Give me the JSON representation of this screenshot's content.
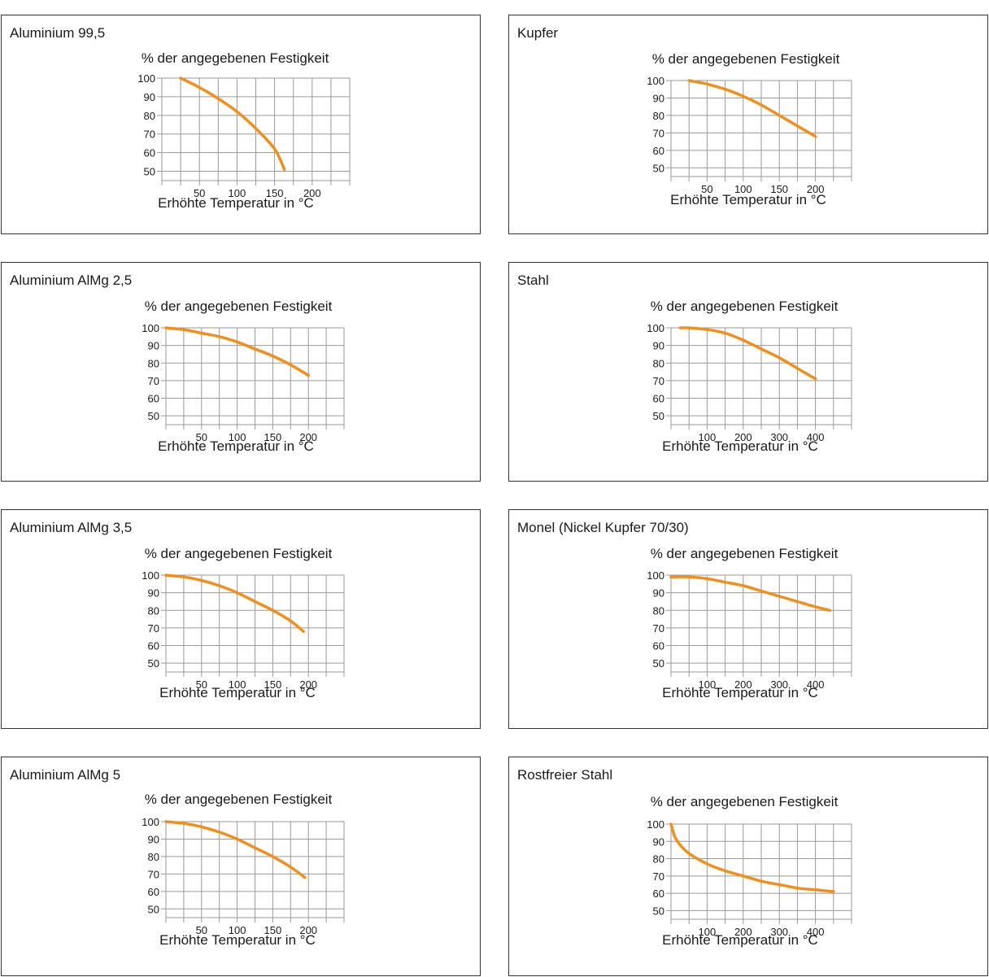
{
  "styles": {
    "curve_color": "#f28f1c",
    "grid_color": "#9a9a9a",
    "border_color": "#333333"
  },
  "chart_data": [
    {
      "id": "alu995",
      "type": "line",
      "panel_title": "Aluminium 99,5",
      "title": "% der angegebenen Festigkeit",
      "xlabel": "Erhöhte Temperatur in °C",
      "xlim": [
        0,
        250
      ],
      "ylim": [
        45,
        100
      ],
      "xticks": [
        50,
        100,
        150,
        200
      ],
      "yticks": [
        100,
        90,
        80,
        70,
        60,
        50
      ],
      "series": [
        {
          "x": [
            25,
            50,
            75,
            100,
            125,
            150,
            163
          ],
          "y": [
            100,
            95,
            89,
            82,
            73,
            62,
            51
          ]
        }
      ]
    },
    {
      "id": "kupfer",
      "type": "line",
      "panel_title": "Kupfer",
      "title": "% der angegebenen Festigkeit",
      "xlabel": "Erhöhte Temperatur in °C",
      "xlim": [
        0,
        250
      ],
      "ylim": [
        45,
        100
      ],
      "xticks": [
        50,
        100,
        150,
        200
      ],
      "yticks": [
        100,
        90,
        80,
        70,
        60,
        50
      ],
      "series": [
        {
          "x": [
            25,
            50,
            75,
            100,
            125,
            150,
            175,
            200
          ],
          "y": [
            100,
            98,
            95,
            91,
            86,
            80,
            74,
            68
          ]
        }
      ]
    },
    {
      "id": "almg25",
      "type": "line",
      "panel_title": "Aluminium AlMg 2,5",
      "title": "% der angegebenen Festigkeit",
      "xlabel": "Erhöhte Temperatur in °C",
      "xlim": [
        0,
        250
      ],
      "ylim": [
        45,
        100
      ],
      "xticks": [
        50,
        100,
        150,
        200
      ],
      "yticks": [
        100,
        90,
        80,
        70,
        60,
        50
      ],
      "series": [
        {
          "x": [
            0,
            25,
            50,
            75,
            100,
            125,
            150,
            175,
            200
          ],
          "y": [
            100,
            99,
            97,
            95,
            92,
            88,
            84,
            79,
            73
          ]
        }
      ]
    },
    {
      "id": "stahl",
      "type": "line",
      "panel_title": "Stahl",
      "title": "% der angegebenen Festigkeit",
      "xlabel": "Erhöhte Temperatur in °C",
      "xlim": [
        0,
        500
      ],
      "ylim": [
        45,
        100
      ],
      "xticks": [
        100,
        200,
        300,
        400
      ],
      "yticks": [
        100,
        90,
        80,
        70,
        60,
        50
      ],
      "series": [
        {
          "x": [
            25,
            50,
            100,
            150,
            200,
            250,
            300,
            350,
            400
          ],
          "y": [
            100,
            100,
            99,
            97,
            93,
            88,
            83,
            77,
            71
          ]
        }
      ]
    },
    {
      "id": "almg35",
      "type": "line",
      "panel_title": "Aluminium AlMg 3,5",
      "title": "% der angegebenen Festigkeit",
      "xlabel": "Erhöhte Temperatur in °C",
      "xlim": [
        0,
        250
      ],
      "ylim": [
        45,
        100
      ],
      "xticks": [
        50,
        100,
        150,
        200
      ],
      "yticks": [
        100,
        90,
        80,
        70,
        60,
        50
      ],
      "series": [
        {
          "x": [
            0,
            25,
            50,
            75,
            100,
            125,
            150,
            175,
            193
          ],
          "y": [
            100,
            99,
            97,
            94,
            90,
            85,
            80,
            74,
            68
          ]
        }
      ]
    },
    {
      "id": "monel",
      "type": "line",
      "panel_title": "Monel (Nickel Kupfer 70/30)",
      "title": "% der angegebenen Festigkeit",
      "xlabel": "Erhöhte Temperatur in °C",
      "xlim": [
        0,
        500
      ],
      "ylim": [
        45,
        100
      ],
      "xticks": [
        100,
        200,
        300,
        400
      ],
      "yticks": [
        100,
        90,
        80,
        70,
        60,
        50
      ],
      "series": [
        {
          "x": [
            0,
            50,
            100,
            150,
            200,
            250,
            300,
            350,
            400,
            440
          ],
          "y": [
            99,
            99,
            98,
            96,
            94,
            91,
            88,
            85,
            82,
            80
          ]
        }
      ]
    },
    {
      "id": "almg5",
      "type": "line",
      "panel_title": "Aluminium AlMg 5",
      "title": "% der angegebenen Festigkeit",
      "xlabel": "Erhöhte Temperatur in °C",
      "xlim": [
        0,
        250
      ],
      "ylim": [
        45,
        100
      ],
      "xticks": [
        50,
        100,
        150,
        200
      ],
      "yticks": [
        100,
        90,
        80,
        70,
        60,
        50
      ],
      "series": [
        {
          "x": [
            0,
            25,
            50,
            75,
            100,
            125,
            150,
            175,
            195
          ],
          "y": [
            100,
            99,
            97,
            94,
            90,
            85,
            80,
            74,
            68
          ]
        }
      ]
    },
    {
      "id": "rostfrei",
      "type": "line",
      "panel_title": "Rostfreier Stahl",
      "title": "% der angegebenen Festigkeit",
      "xlabel": "Erhöhte Temperatur in °C",
      "xlim": [
        0,
        500
      ],
      "ylim": [
        45,
        100
      ],
      "xticks": [
        100,
        200,
        300,
        400
      ],
      "yticks": [
        100,
        90,
        80,
        70,
        60,
        50
      ],
      "series": [
        {
          "x": [
            0,
            10,
            25,
            50,
            100,
            150,
            200,
            250,
            300,
            350,
            400,
            450
          ],
          "y": [
            100,
            93,
            88,
            83,
            77,
            73,
            70,
            67,
            65,
            63,
            62,
            61
          ]
        }
      ]
    }
  ]
}
